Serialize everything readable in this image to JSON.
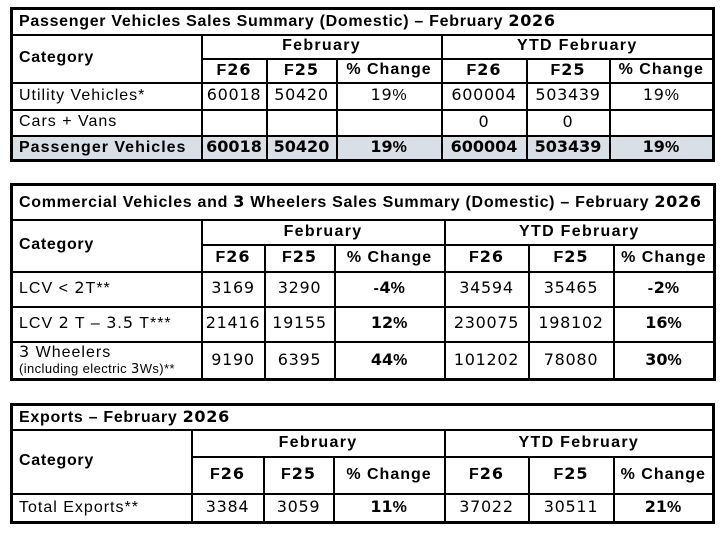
{
  "colors": {
    "shaded_row": "#d8dfe7",
    "border": "#000000",
    "text": "#000000"
  },
  "tables": [
    {
      "title": "Passenger Vehicles Sales Summary (Domestic) – February 2026",
      "category_header": "Category",
      "group_headers": [
        "February",
        "YTD February"
      ],
      "sub_headers": [
        "F26",
        "F25",
        "% Change",
        "F26",
        "F25",
        "% Change"
      ],
      "pct_bold": false,
      "rows": [
        {
          "category": "Utility Vehicles*",
          "cells": [
            "60018",
            "50420",
            "19%",
            "600004",
            "503439",
            "19%"
          ],
          "bold": false,
          "shaded": false
        },
        {
          "category": "Cars + Vans",
          "cells": [
            "",
            "",
            "",
            "0",
            "0",
            ""
          ],
          "bold": false,
          "shaded": false
        },
        {
          "category": "Passenger Vehicles",
          "cells": [
            "60018",
            "50420",
            "19%",
            "600004",
            "503439",
            "19%"
          ],
          "bold": true,
          "shaded": true
        }
      ]
    },
    {
      "title": "Commercial Vehicles and 3 Wheelers Sales Summary (Domestic) – February 2026",
      "category_header": "Category",
      "group_headers": [
        "February",
        "YTD February"
      ],
      "sub_headers": [
        "F26",
        "F25",
        "% Change",
        "F26",
        "F25",
        "% Change"
      ],
      "pct_bold": true,
      "rows": [
        {
          "category": "LCV < 2T**",
          "cells": [
            "3169",
            "3290",
            "-4%",
            "34594",
            "35465",
            "-2%"
          ],
          "bold": false,
          "shaded": false
        },
        {
          "category": "LCV 2 T – 3.5 T***",
          "cells": [
            "21416",
            "19155",
            "12%",
            "230075",
            "198102",
            "16%"
          ],
          "bold": false,
          "shaded": false
        },
        {
          "category": "3 Wheelers",
          "category_note": "(including electric 3Ws)**",
          "cells": [
            "9190",
            "6395",
            "44%",
            "101202",
            "78080",
            "30%"
          ],
          "bold": false,
          "shaded": false
        }
      ]
    },
    {
      "title": "Exports – February 2026",
      "category_header": "Category",
      "group_headers": [
        "February",
        "YTD February"
      ],
      "sub_headers": [
        "F26",
        "F25",
        "% Change",
        "F26",
        "F25",
        "% Change"
      ],
      "pct_bold": true,
      "rows": [
        {
          "category": "Total Exports**",
          "cells": [
            "3384",
            "3059",
            "11%",
            "37022",
            "30511",
            "21%"
          ],
          "bold": false,
          "shaded": false
        }
      ]
    }
  ]
}
